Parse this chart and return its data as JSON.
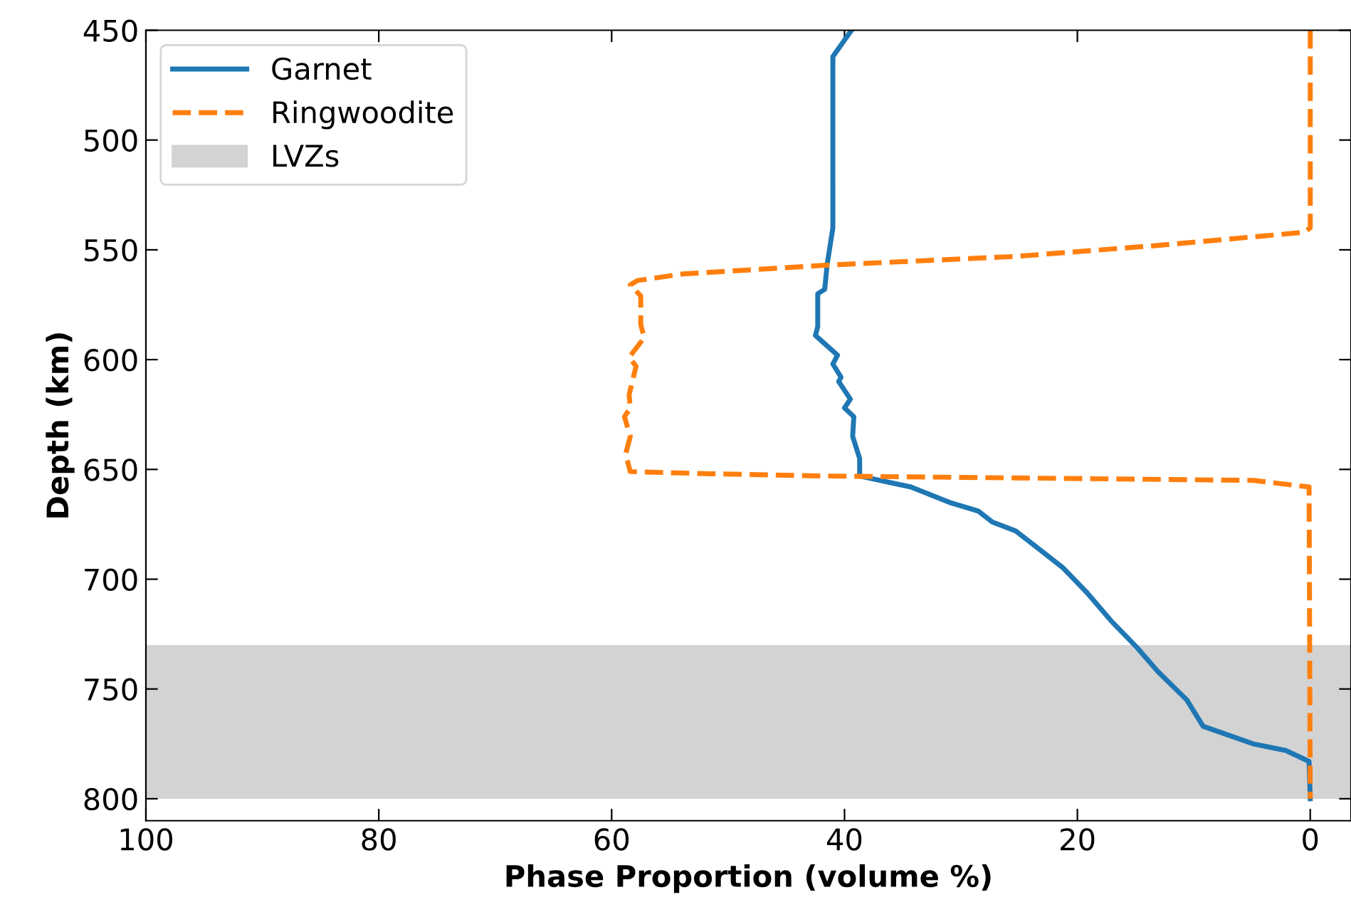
{
  "chart_data": {
    "type": "line",
    "xlabel": "Phase Proportion (volume %)",
    "ylabel": "Depth (km)",
    "xlim": [
      100,
      -3.5
    ],
    "xticks": [
      100,
      80,
      60,
      40,
      20,
      0
    ],
    "ylim": [
      810,
      450
    ],
    "yticks": [
      450,
      500,
      550,
      600,
      650,
      700,
      750,
      800
    ],
    "legend": "top left",
    "grid": false,
    "bands": [
      {
        "axis": "y",
        "from": 730,
        "to": 800,
        "label": "LVZs",
        "color": "#d3d3d3"
      }
    ],
    "series": [
      {
        "name": "Garnet",
        "color": "#1f77b4",
        "line_style": "solid",
        "x": [
          39.4,
          41.0,
          41.0,
          41.5,
          41.7,
          42.3,
          42.3,
          42.5,
          40.6,
          41.0,
          40.3,
          40.5,
          39.5,
          40.0,
          39.2,
          39.3,
          38.7,
          38.7,
          38.7,
          34.3,
          31.0,
          28.5,
          27.3,
          25.3,
          23.6,
          21.2,
          19.2,
          17.1,
          14.9,
          13.1,
          10.6,
          9.2,
          4.9,
          2.1,
          0.1,
          0
        ],
        "values": [
          450,
          462,
          540,
          557,
          568,
          570,
          585,
          589,
          598,
          602,
          608,
          610,
          618,
          622,
          626,
          635,
          645,
          652,
          653,
          658,
          665,
          669,
          674,
          678,
          685,
          695,
          706,
          719,
          731,
          742,
          755,
          767,
          775,
          778,
          783,
          800
        ]
      },
      {
        "name": "Ringwoodite",
        "color": "#ff7f0e",
        "line_style": "dashed",
        "x": [
          0,
          0,
          0.5,
          13.1,
          25.3,
          41.6,
          53.9,
          57.8,
          58.4,
          57.5,
          57.5,
          57.2,
          58.5,
          57.9,
          58.5,
          58.4,
          58.9,
          58.4,
          58.8,
          58.4,
          51.4,
          41.6,
          4.9,
          0.1,
          0
        ],
        "values": [
          450,
          540,
          542,
          548,
          553,
          557,
          561,
          564,
          566,
          571,
          584,
          590,
          599,
          603,
          616,
          622,
          626,
          635,
          643,
          651,
          652,
          653,
          655,
          658,
          800
        ]
      }
    ]
  }
}
